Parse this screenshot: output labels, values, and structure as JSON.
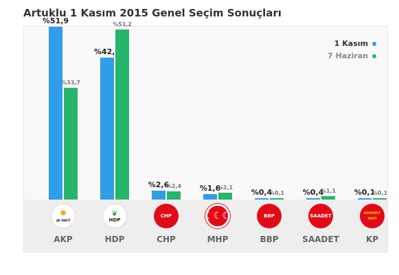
{
  "title": "Artuklu 1 Kasım 2015 Genel Seçim Sonuçları",
  "colors": {
    "kasim": "#2f9de7",
    "haziran": "#27b56b"
  },
  "chart_data": {
    "type": "bar",
    "categories": [
      "AKP",
      "HDP",
      "CHP",
      "MHP",
      "BBP",
      "SAADET",
      "KP"
    ],
    "series": [
      {
        "name": "1 Kasım",
        "values": [
          51.9,
          42.7,
          2.6,
          1.6,
          0.4,
          0.4,
          0.1
        ],
        "labels": [
          "%51,9",
          "%42,7",
          "%2,6",
          "%1,6",
          "%0,4",
          "%0,4",
          "%0,1"
        ]
      },
      {
        "name": "7 Haziran",
        "values": [
          33.7,
          51.2,
          2.4,
          2.1,
          0.1,
          1.1,
          0.1
        ],
        "labels": [
          "%33,7",
          "%51,2",
          "%2,4",
          "%2,1",
          "%0,1",
          "%1,1",
          "%0,1"
        ]
      }
    ],
    "ylim": [
      0,
      52
    ]
  },
  "logos": [
    {
      "icon": "akp-logo",
      "text": "AK PARTİ"
    },
    {
      "icon": "hdp-logo",
      "text": "HDP"
    },
    {
      "icon": "chp-logo",
      "text": "CHP"
    },
    {
      "icon": "mhp-logo",
      "text": ""
    },
    {
      "icon": "bbp-logo",
      "text": "BBP"
    },
    {
      "icon": "saadet-logo",
      "text": "SAADET"
    },
    {
      "icon": "kp-logo",
      "text": "KOMÜNİST PARTİ"
    }
  ]
}
